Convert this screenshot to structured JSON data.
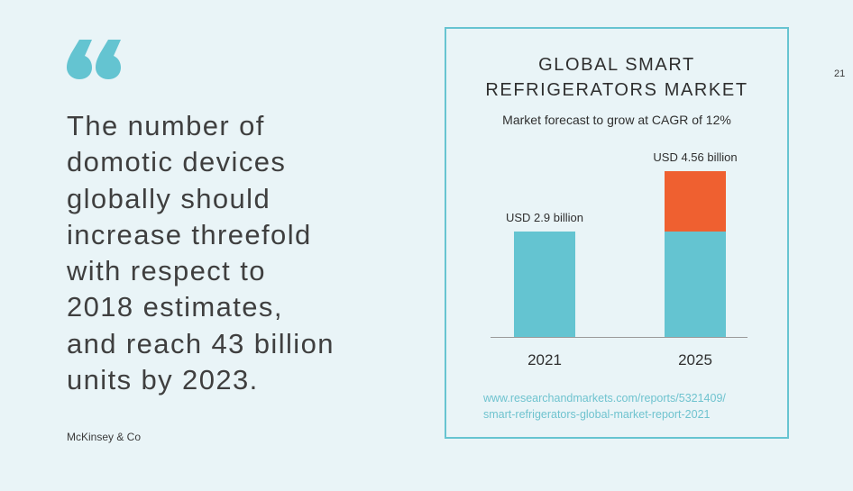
{
  "quote": {
    "lines": [
      "The number of",
      "domotic devices",
      "globally should",
      "increase threefold",
      "with respect to",
      "2018 estimates,",
      "and reach 43 billion",
      "units by 2023."
    ],
    "source": "McKinsey & Co"
  },
  "page_number": "21",
  "colors": {
    "teal": "#64c4d1",
    "orange": "#ef6030",
    "background": "#e9f4f7"
  },
  "icons": {
    "quote": "quote-mark-icon"
  },
  "chart_data": {
    "type": "bar",
    "title_lines": [
      "GLOBAL SMART",
      "REFRIGERATORS MARKET"
    ],
    "subtitle": "Market forecast to grow at CAGR of 12%",
    "categories": [
      "2021",
      "2025"
    ],
    "series": [
      {
        "values": [
          2.9,
          2.9
        ],
        "color": "#64c4d1"
      },
      {
        "values": [
          0,
          1.66
        ],
        "color": "#ef6030"
      }
    ],
    "totals": [
      2.9,
      4.56
    ],
    "data_labels": [
      "USD 2.9 billion",
      "USD 4.56 billion"
    ],
    "ylim": [
      0,
      4.56
    ],
    "grid": false,
    "legend": "none",
    "source_lines": [
      "www.researchandmarkets.com/reports/5321409/",
      "smart-refrigerators-global-market-report-2021"
    ]
  }
}
